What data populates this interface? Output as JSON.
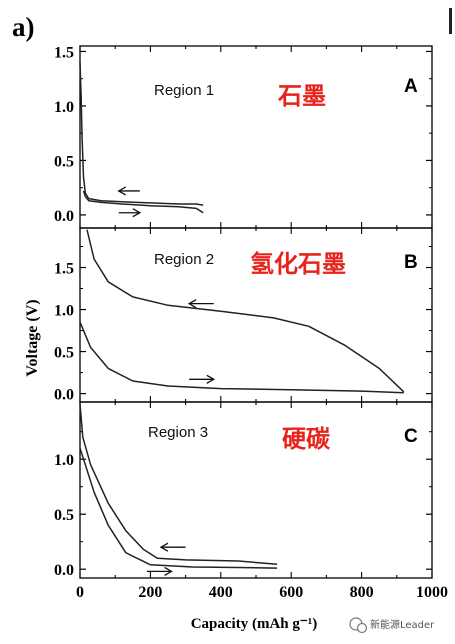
{
  "panel_label": "a)",
  "watermark": {
    "text": "新能源Leader"
  },
  "colors": {
    "curve": "#222222",
    "chinese_label": "#e8231a",
    "axes": "#000000"
  },
  "chart_data": [
    {
      "type": "line",
      "panel": "A",
      "region_label": "Region 1",
      "chinese_label": "石墨",
      "xlabel": "",
      "ylabel": "",
      "xlim": [
        0,
        1000
      ],
      "ylim": [
        -0.12,
        1.55
      ],
      "yticks": [
        "0.0",
        "0.5",
        "1.0",
        "1.5"
      ],
      "ytick_values": [
        0,
        0.5,
        1.0,
        1.5
      ],
      "series": [
        {
          "direction": "discharge",
          "points": [
            [
              0,
              1.4
            ],
            [
              3,
              1.1
            ],
            [
              6,
              0.7
            ],
            [
              10,
              0.35
            ],
            [
              15,
              0.2
            ],
            [
              25,
              0.15
            ],
            [
              60,
              0.13
            ],
            [
              120,
              0.12
            ],
            [
              200,
              0.11
            ],
            [
              280,
              0.1
            ],
            [
              330,
              0.1
            ],
            [
              350,
              0.09
            ]
          ]
        },
        {
          "direction": "charge",
          "points": [
            [
              350,
              0.02
            ],
            [
              330,
              0.06
            ],
            [
              280,
              0.075
            ],
            [
              200,
              0.085
            ],
            [
              120,
              0.1
            ],
            [
              60,
              0.115
            ],
            [
              25,
              0.13
            ],
            [
              15,
              0.17
            ],
            [
              10,
              0.22
            ]
          ]
        }
      ],
      "arrows": [
        {
          "direction": "left",
          "x": [
            170,
            110
          ],
          "y": 0.22
        },
        {
          "direction": "right",
          "x": [
            110,
            170
          ],
          "y": 0.02
        }
      ]
    },
    {
      "type": "line",
      "panel": "B",
      "region_label": "Region 2",
      "chinese_label": "氢化石墨",
      "xlabel": "",
      "ylabel": "Voltage (V)",
      "xlim": [
        0,
        1000
      ],
      "ylim": [
        -0.1,
        1.97
      ],
      "yticks": [
        "0.0",
        "0.5",
        "1.0",
        "1.5"
      ],
      "ytick_values": [
        0,
        0.5,
        1.0,
        1.5
      ],
      "series": [
        {
          "direction": "discharge",
          "points": [
            [
              20,
              1.95
            ],
            [
              40,
              1.6
            ],
            [
              80,
              1.33
            ],
            [
              150,
              1.15
            ],
            [
              250,
              1.05
            ],
            [
              400,
              0.98
            ],
            [
              550,
              0.9
            ],
            [
              650,
              0.8
            ],
            [
              750,
              0.58
            ],
            [
              850,
              0.3
            ],
            [
              920,
              0.02
            ]
          ]
        },
        {
          "direction": "charge",
          "points": [
            [
              920,
              0.01
            ],
            [
              800,
              0.03
            ],
            [
              600,
              0.045
            ],
            [
              400,
              0.06
            ],
            [
              250,
              0.09
            ],
            [
              150,
              0.15
            ],
            [
              80,
              0.3
            ],
            [
              30,
              0.55
            ],
            [
              0,
              0.85
            ]
          ]
        }
      ],
      "arrows": [
        {
          "direction": "left",
          "x": [
            380,
            310
          ],
          "y": 1.07
        },
        {
          "direction": "right",
          "x": [
            310,
            380
          ],
          "y": 0.17
        }
      ]
    },
    {
      "type": "line",
      "panel": "C",
      "region_label": "Region 3",
      "chinese_label": "硬碳",
      "xlabel": "Capacity (mAh g⁻¹)",
      "ylabel": "",
      "xlim": [
        0,
        1000
      ],
      "ylim": [
        -0.08,
        1.52
      ],
      "yticks": [
        "0.0",
        "0.5",
        "1.0"
      ],
      "ytick_values": [
        0,
        0.5,
        1.0
      ],
      "xticks": [
        "0",
        "200",
        "400",
        "600",
        "800",
        "1000"
      ],
      "xtick_values": [
        0,
        200,
        400,
        600,
        800,
        1000
      ],
      "series": [
        {
          "direction": "discharge",
          "points": [
            [
              0,
              1.5
            ],
            [
              8,
              1.2
            ],
            [
              30,
              0.95
            ],
            [
              80,
              0.6
            ],
            [
              130,
              0.35
            ],
            [
              180,
              0.18
            ],
            [
              220,
              0.1
            ],
            [
              300,
              0.085
            ],
            [
              450,
              0.075
            ],
            [
              560,
              0.045
            ]
          ]
        },
        {
          "direction": "charge",
          "points": [
            [
              560,
              0.01
            ],
            [
              450,
              0.015
            ],
            [
              320,
              0.02
            ],
            [
              200,
              0.04
            ],
            [
              130,
              0.15
            ],
            [
              80,
              0.4
            ],
            [
              40,
              0.7
            ],
            [
              15,
              0.95
            ],
            [
              0,
              1.1
            ]
          ]
        }
      ],
      "arrows": [
        {
          "direction": "left",
          "x": [
            300,
            230
          ],
          "y": 0.2
        },
        {
          "direction": "right",
          "x": [
            190,
            260
          ],
          "y": -0.02
        }
      ]
    }
  ]
}
